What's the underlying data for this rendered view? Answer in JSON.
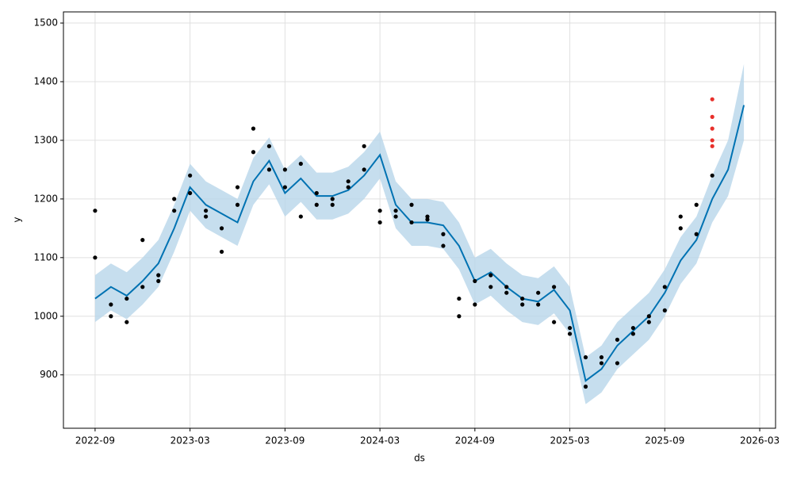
{
  "chart_data": {
    "type": "forecast",
    "x_label": "ds",
    "y_label": "y",
    "x": [
      "2022-09",
      "2022-10",
      "2022-11",
      "2022-12",
      "2023-01",
      "2023-02",
      "2023-03",
      "2023-04",
      "2023-05",
      "2023-06",
      "2023-07",
      "2023-08",
      "2023-09",
      "2023-10",
      "2023-11",
      "2023-12",
      "2024-01",
      "2024-02",
      "2024-03",
      "2024-04",
      "2024-05",
      "2024-06",
      "2024-07",
      "2024-08",
      "2024-09",
      "2024-10",
      "2024-11",
      "2024-12",
      "2025-01",
      "2025-02",
      "2025-03",
      "2025-04",
      "2025-05",
      "2025-06",
      "2025-07",
      "2025-08",
      "2025-09",
      "2025-10",
      "2025-11",
      "2025-12",
      "2026-01",
      "2026-02"
    ],
    "yhat": [
      1030,
      1050,
      1035,
      1060,
      1090,
      1150,
      1220,
      1190,
      1175,
      1160,
      1230,
      1265,
      1210,
      1235,
      1205,
      1205,
      1215,
      1240,
      1275,
      1190,
      1160,
      1160,
      1155,
      1120,
      1060,
      1075,
      1050,
      1030,
      1025,
      1045,
      1010,
      890,
      910,
      950,
      975,
      1000,
      1040,
      1095,
      1130,
      1200,
      1250,
      1360
    ],
    "yhat_lower": [
      990,
      1010,
      995,
      1020,
      1050,
      1110,
      1180,
      1150,
      1135,
      1120,
      1190,
      1225,
      1170,
      1195,
      1165,
      1165,
      1175,
      1200,
      1235,
      1150,
      1120,
      1120,
      1115,
      1080,
      1020,
      1035,
      1010,
      990,
      985,
      1005,
      970,
      850,
      870,
      910,
      935,
      960,
      1000,
      1055,
      1090,
      1160,
      1205,
      1300
    ],
    "yhat_upper": [
      1070,
      1090,
      1075,
      1100,
      1130,
      1190,
      1260,
      1230,
      1215,
      1200,
      1270,
      1305,
      1250,
      1275,
      1245,
      1245,
      1255,
      1280,
      1315,
      1230,
      1200,
      1200,
      1195,
      1160,
      1100,
      1115,
      1090,
      1070,
      1065,
      1085,
      1050,
      930,
      950,
      990,
      1015,
      1040,
      1080,
      1135,
      1170,
      1240,
      1300,
      1430
    ],
    "line_color": "#0072b2",
    "band_color": "#b8d6ea",
    "observed": {
      "color": "#000000",
      "x": [
        "2022-09",
        "2022-09",
        "2022-10",
        "2022-10",
        "2022-11",
        "2022-11",
        "2022-12",
        "2022-12",
        "2023-01",
        "2023-01",
        "2023-02",
        "2023-02",
        "2023-03",
        "2023-03",
        "2023-04",
        "2023-04",
        "2023-05",
        "2023-05",
        "2023-06",
        "2023-06",
        "2023-07",
        "2023-07",
        "2023-08",
        "2023-08",
        "2023-09",
        "2023-09",
        "2023-10",
        "2023-10",
        "2023-11",
        "2023-11",
        "2023-12",
        "2023-12",
        "2024-01",
        "2024-01",
        "2024-02",
        "2024-02",
        "2024-03",
        "2024-03",
        "2024-04",
        "2024-04",
        "2024-05",
        "2024-05",
        "2024-06",
        "2024-06",
        "2024-07",
        "2024-07",
        "2024-08",
        "2024-08",
        "2024-09",
        "2024-09",
        "2024-10",
        "2024-10",
        "2024-11",
        "2024-11",
        "2024-12",
        "2024-12",
        "2025-01",
        "2025-01",
        "2025-02",
        "2025-02",
        "2025-03",
        "2025-03",
        "2025-04",
        "2025-04",
        "2025-05",
        "2025-05",
        "2025-06",
        "2025-06",
        "2025-07",
        "2025-07",
        "2025-08",
        "2025-08",
        "2025-09",
        "2025-09",
        "2025-10",
        "2025-10",
        "2025-11",
        "2025-11",
        "2025-12"
      ],
      "values": [
        1180,
        1100,
        1000,
        1020,
        990,
        1030,
        1050,
        1130,
        1070,
        1060,
        1180,
        1200,
        1240,
        1210,
        1180,
        1170,
        1150,
        1110,
        1190,
        1220,
        1280,
        1320,
        1250,
        1290,
        1220,
        1250,
        1260,
        1170,
        1190,
        1210,
        1200,
        1190,
        1220,
        1230,
        1250,
        1290,
        1180,
        1160,
        1170,
        1180,
        1160,
        1190,
        1165,
        1170,
        1140,
        1120,
        1000,
        1030,
        1020,
        1060,
        1070,
        1050,
        1050,
        1040,
        1020,
        1030,
        1020,
        1040,
        1050,
        990,
        970,
        980,
        880,
        930,
        920,
        930,
        920,
        960,
        970,
        980,
        990,
        1000,
        1010,
        1050,
        1170,
        1150,
        1140,
        1190,
        1240
      ]
    },
    "holdout": {
      "color": "#e8302b",
      "x": [
        "2025-12",
        "2025-12",
        "2025-12",
        "2025-12",
        "2025-12"
      ],
      "values": [
        1290,
        1340,
        1370,
        1320,
        1300
      ]
    },
    "xlim": [
      "2022-07",
      "2026-04"
    ],
    "xticks": [
      "2022-09",
      "2023-03",
      "2023-09",
      "2024-03",
      "2024-09",
      "2025-03",
      "2025-09",
      "2026-03"
    ],
    "ylim": [
      809,
      1519
    ],
    "yticks": [
      900,
      1000,
      1100,
      1200,
      1300,
      1400,
      1500
    ],
    "grid": true
  }
}
